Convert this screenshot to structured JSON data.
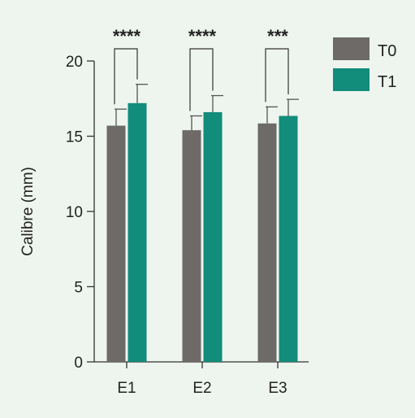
{
  "chart_data": {
    "type": "bar",
    "title": "",
    "xlabel": "",
    "ylabel": "Calibre (mm)",
    "ylim": [
      0,
      20
    ],
    "yticks": [
      0,
      5,
      10,
      15,
      20
    ],
    "grid": false,
    "legend_position": "top-right",
    "categories": [
      "E1",
      "E2",
      "E3"
    ],
    "series": [
      {
        "name": "T0",
        "color": "#6d6a67",
        "values": [
          15.7,
          15.4,
          15.85
        ],
        "errors": [
          1.1,
          0.95,
          1.1
        ]
      },
      {
        "name": "T1",
        "color": "#128c7b",
        "values": [
          17.2,
          16.6,
          16.35
        ],
        "errors": [
          1.25,
          1.1,
          1.1
        ]
      }
    ],
    "significance": [
      "****",
      "****",
      "***"
    ]
  }
}
